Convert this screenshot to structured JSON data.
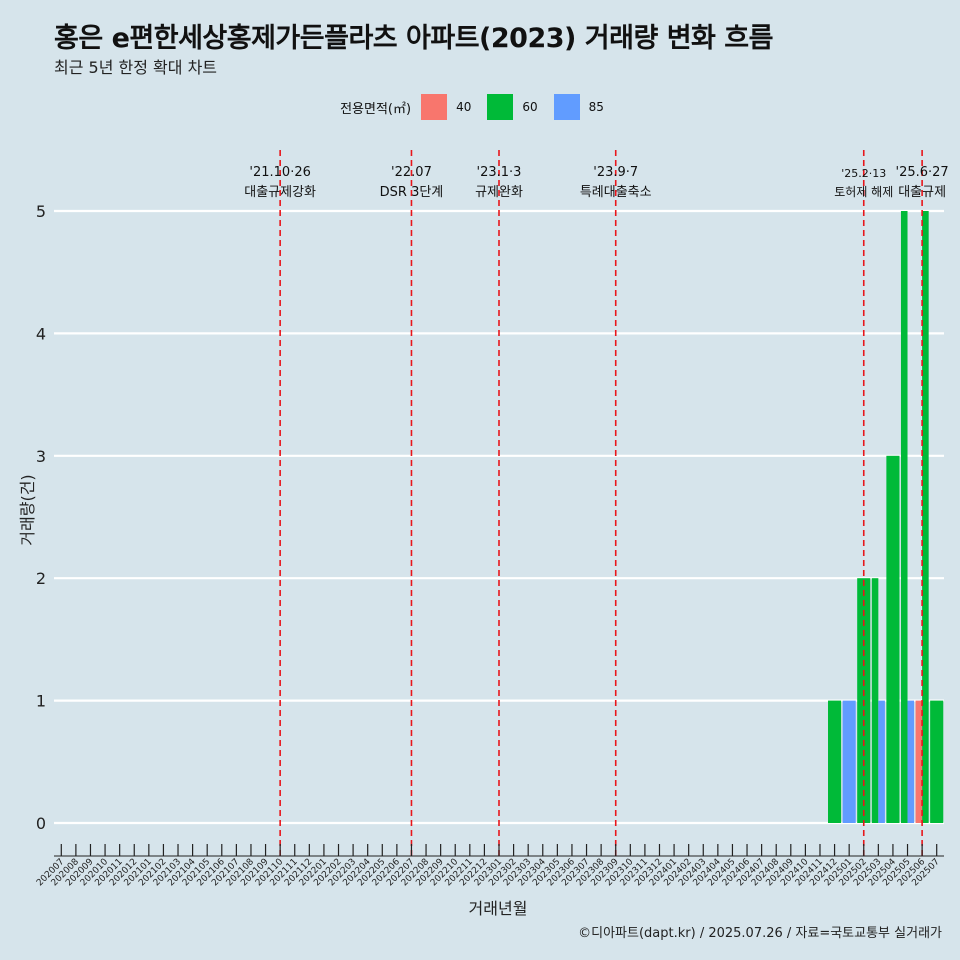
{
  "header": {
    "title": "홍은 e편한세상홍제가든플라츠 아파트(2023) 거래량 변화 흐름",
    "subtitle": "최근 5년 한정 확대 차트"
  },
  "legend": {
    "title": "전용면적(㎡)",
    "items": [
      {
        "label": "40",
        "color": "#f8766d"
      },
      {
        "label": "60",
        "color": "#00ba38"
      },
      {
        "label": "85",
        "color": "#619cff"
      }
    ]
  },
  "caption": "©디아파트(dapt.kr) / 2025.07.26 / 자료=국토교통부 실거래가",
  "chart_data": {
    "type": "bar",
    "xlabel": "거래년월",
    "ylabel": "거래량(건)",
    "ylim": [
      0,
      5
    ],
    "yticks": [
      0,
      1,
      2,
      3,
      4,
      5
    ],
    "grid": true,
    "legend_position": "top",
    "categories": [
      "202007",
      "202008",
      "202009",
      "202010",
      "202011",
      "202012",
      "202101",
      "202102",
      "202103",
      "202104",
      "202105",
      "202106",
      "202107",
      "202108",
      "202109",
      "202110",
      "202111",
      "202112",
      "202201",
      "202202",
      "202203",
      "202204",
      "202205",
      "202206",
      "202207",
      "202208",
      "202209",
      "202210",
      "202211",
      "202212",
      "202301",
      "202302",
      "202303",
      "202304",
      "202305",
      "202306",
      "202307",
      "202308",
      "202309",
      "202310",
      "202311",
      "202312",
      "202401",
      "202402",
      "202403",
      "202404",
      "202405",
      "202406",
      "202407",
      "202408",
      "202409",
      "202410",
      "202411",
      "202412",
      "202501",
      "202502",
      "202503",
      "202504",
      "202505",
      "202506",
      "202507"
    ],
    "bars": [
      {
        "month": "202412",
        "area": "60",
        "value": 1
      },
      {
        "month": "202501",
        "area": "85",
        "value": 1
      },
      {
        "month": "202502",
        "area": "60",
        "value": 2
      },
      {
        "month": "202503",
        "area": "60",
        "value": 2
      },
      {
        "month": "202503",
        "area": "85",
        "value": 1
      },
      {
        "month": "202504",
        "area": "60",
        "value": 3
      },
      {
        "month": "202505",
        "area": "60",
        "value": 5
      },
      {
        "month": "202505",
        "area": "85",
        "value": 1
      },
      {
        "month": "202506",
        "area": "40",
        "value": 1
      },
      {
        "month": "202506",
        "area": "60",
        "value": 5
      },
      {
        "month": "202507",
        "area": "60",
        "value": 1
      }
    ],
    "annotations": [
      {
        "month": "202110",
        "date": "'21.10·26",
        "label": "대출규제강화"
      },
      {
        "month": "202207",
        "date": "'22.07",
        "label": "DSR 3단계"
      },
      {
        "month": "202301",
        "date": "'23.1·3",
        "label": "규제완화"
      },
      {
        "month": "202309",
        "date": "'23.9·7",
        "label": "특례대출축소"
      },
      {
        "month": "202502",
        "date": "'25.2·13",
        "label": "토허제 해제"
      },
      {
        "month": "202506",
        "date": "'25.6·27",
        "label": "대출규제"
      }
    ]
  }
}
